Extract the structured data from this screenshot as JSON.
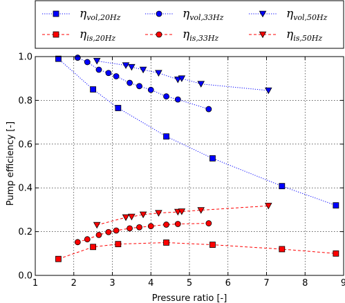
{
  "chart_data": {
    "type": "scatter",
    "xlabel": "Pressure ratio [-]",
    "ylabel": "Pump efficiency [-]",
    "xlim": [
      1,
      9
    ],
    "ylim": [
      0,
      1
    ],
    "xticks": [
      "1",
      "2",
      "3",
      "4",
      "5",
      "6",
      "7",
      "8",
      "9"
    ],
    "yticks": [
      "0.0",
      "0.2",
      "0.4",
      "0.6",
      "0.8",
      "1.0"
    ],
    "grid": true,
    "legend_position": "top, above plot, 3 columns",
    "series": [
      {
        "name": "η_vol,20Hz",
        "legend_main": "η",
        "legend_sub": "vol,20Hz",
        "color": "#0000ff",
        "marker": "square",
        "line": "dotted",
        "x": [
          1.6,
          2.5,
          3.15,
          4.4,
          5.6,
          7.4,
          8.8
        ],
        "y": [
          0.99,
          0.85,
          0.765,
          0.635,
          0.535,
          0.408,
          0.32
        ]
      },
      {
        "name": "η_vol,33Hz",
        "legend_main": "η",
        "legend_sub": "vol,33Hz",
        "color": "#0000ff",
        "marker": "circle",
        "line": "dotted",
        "x": [
          2.1,
          2.35,
          2.65,
          2.9,
          3.1,
          3.45,
          3.7,
          4.0,
          4.4,
          4.7,
          5.5
        ],
        "y": [
          0.995,
          0.975,
          0.94,
          0.925,
          0.91,
          0.88,
          0.865,
          0.848,
          0.818,
          0.804,
          0.76
        ]
      },
      {
        "name": "η_vol,50Hz",
        "legend_main": "η",
        "legend_sub": "vol,50Hz",
        "color": "#0000ff",
        "marker": "triangle-down",
        "line": "dotted",
        "x": [
          2.6,
          3.35,
          3.5,
          3.8,
          4.2,
          4.7,
          4.8,
          5.3,
          7.05
        ],
        "y": [
          0.98,
          0.96,
          0.952,
          0.94,
          0.925,
          0.895,
          0.9,
          0.875,
          0.845
        ]
      },
      {
        "name": "η_is,20Hz",
        "legend_main": "η",
        "legend_sub": "is,20Hz",
        "color": "#ff0000",
        "marker": "square",
        "line": "dashed",
        "x": [
          1.6,
          2.5,
          3.15,
          4.4,
          5.6,
          7.4,
          8.8
        ],
        "y": [
          0.075,
          0.13,
          0.143,
          0.15,
          0.14,
          0.12,
          0.1
        ]
      },
      {
        "name": "η_is,33Hz",
        "legend_main": "η",
        "legend_sub": "is,33Hz",
        "color": "#ff0000",
        "marker": "circle",
        "line": "dashed",
        "x": [
          2.1,
          2.35,
          2.65,
          2.9,
          3.1,
          3.45,
          3.7,
          4.0,
          4.4,
          4.7,
          5.5
        ],
        "y": [
          0.152,
          0.165,
          0.185,
          0.198,
          0.205,
          0.215,
          0.22,
          0.225,
          0.232,
          0.235,
          0.238
        ]
      },
      {
        "name": "η_is,50Hz",
        "legend_main": "η",
        "legend_sub": "is,50Hz",
        "color": "#ff0000",
        "marker": "triangle-down",
        "line": "dashed",
        "x": [
          2.6,
          3.35,
          3.5,
          3.8,
          4.2,
          4.7,
          4.8,
          5.3,
          7.05
        ],
        "y": [
          0.23,
          0.265,
          0.268,
          0.278,
          0.285,
          0.29,
          0.292,
          0.298,
          0.318
        ]
      }
    ]
  }
}
